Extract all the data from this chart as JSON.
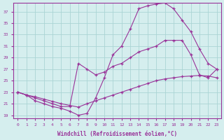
{
  "background_color": "#d5eeee",
  "grid_color": "#aad4d4",
  "line_color": "#993399",
  "xlabel": "Windchill (Refroidissement éolien,°C)",
  "xlim": [
    -0.5,
    23.5
  ],
  "ylim": [
    18.5,
    38.5
  ],
  "yticks": [
    19,
    21,
    23,
    25,
    27,
    29,
    31,
    33,
    35,
    37
  ],
  "xticks": [
    0,
    1,
    2,
    3,
    4,
    5,
    6,
    7,
    8,
    9,
    10,
    11,
    12,
    13,
    14,
    15,
    16,
    17,
    18,
    19,
    20,
    21,
    22,
    23
  ],
  "line1_x": [
    0,
    1,
    2,
    3,
    4,
    5,
    6,
    7,
    8,
    9,
    10,
    11,
    12,
    13,
    14,
    15,
    16,
    17,
    18,
    19,
    20,
    21,
    22,
    23
  ],
  "line1_y": [
    23.0,
    22.5,
    22.2,
    21.8,
    21.4,
    21.0,
    20.7,
    20.4,
    21.0,
    21.5,
    22.0,
    22.5,
    23.0,
    23.5,
    24.0,
    24.5,
    25.0,
    25.3,
    25.5,
    25.7,
    25.8,
    25.9,
    25.8,
    25.5
  ],
  "line2_x": [
    0,
    1,
    2,
    3,
    4,
    5,
    6,
    7,
    8,
    9,
    10,
    11,
    12,
    13,
    14,
    15,
    16,
    17,
    18,
    19,
    20,
    21,
    22,
    23
  ],
  "line2_y": [
    23.0,
    22.5,
    21.5,
    21.0,
    20.5,
    20.2,
    19.7,
    19.0,
    19.3,
    22.0,
    25.5,
    29.5,
    31.0,
    34.0,
    37.5,
    38.0,
    38.3,
    38.5,
    37.5,
    35.5,
    33.5,
    30.5,
    28.0,
    27.0
  ],
  "line3_x": [
    0,
    1,
    2,
    3,
    4,
    5,
    6,
    7,
    8,
    9,
    10,
    11,
    12,
    13,
    14,
    15,
    16,
    17,
    18,
    19,
    20,
    21,
    22,
    23
  ],
  "line3_y": [
    23.0,
    22.5,
    22.0,
    21.5,
    21.0,
    20.5,
    20.5,
    28.0,
    27.0,
    26.0,
    26.5,
    27.5,
    28.0,
    29.0,
    30.0,
    30.5,
    31.0,
    32.0,
    32.0,
    32.0,
    29.5,
    26.0,
    25.5,
    27.0
  ]
}
